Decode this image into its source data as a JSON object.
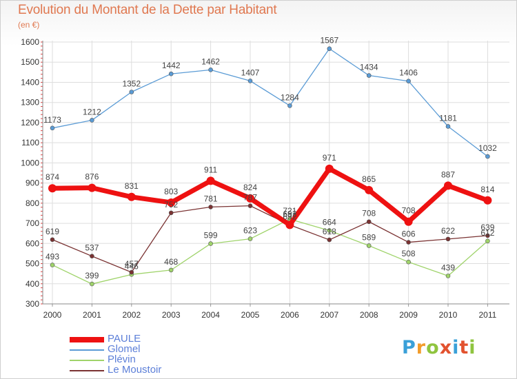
{
  "title": "Evolution du Montant de la Dette par Habitant",
  "subtitle": "(en €)",
  "logo": {
    "text": "Proxiti",
    "letter_colors": [
      "#3aa0d8",
      "#f29c2b",
      "#8fc43f",
      "#e2522f",
      "#3aa0d8",
      "#e2522f",
      "#8fc43f"
    ]
  },
  "chart_data": {
    "type": "line",
    "title": "Evolution du Montant de la Dette par Habitant",
    "subtitle": "(en €)",
    "x": [
      "2000",
      "2001",
      "2002",
      "2003",
      "2004",
      "2005",
      "2006",
      "2007",
      "2008",
      "2009",
      "2010",
      "2011"
    ],
    "ylim": [
      300,
      1600
    ],
    "yticks": [
      300,
      400,
      500,
      600,
      700,
      800,
      900,
      1000,
      1100,
      1200,
      1300,
      1400,
      1500,
      1600
    ],
    "grid": true,
    "legend_position": "bottom-left",
    "series": [
      {
        "name": "Glomel",
        "color": "#5a9bd5",
        "values": [
          1173,
          1212,
          1352,
          1442,
          1462,
          1407,
          1284,
          1567,
          1434,
          1406,
          1181,
          1032
        ]
      },
      {
        "name": "Plévin",
        "color": "#9fd36a",
        "values": [
          493,
          399,
          446,
          468,
          599,
          623,
          721,
          664,
          589,
          508,
          439,
          612
        ]
      },
      {
        "name": "Le Moustoir",
        "color": "#7a3232",
        "values": [
          619,
          537,
          457,
          752,
          781,
          787,
          692,
          618,
          708,
          606,
          622,
          639
        ]
      },
      {
        "name": "PAULE",
        "color": "#ee1111",
        "values": [
          874,
          876,
          831,
          803,
          911,
          824,
          692,
          971,
          865,
          708,
          887,
          814
        ]
      }
    ]
  }
}
